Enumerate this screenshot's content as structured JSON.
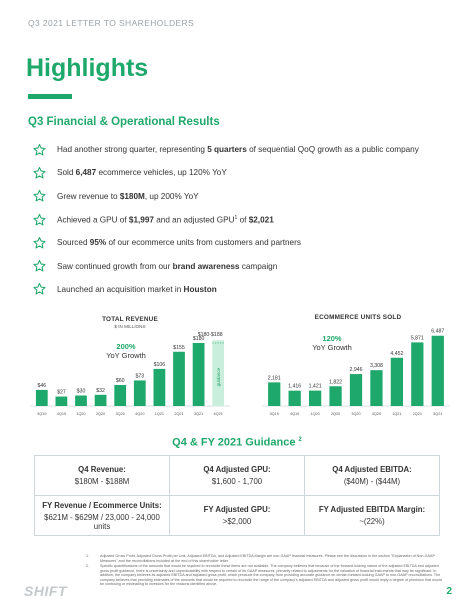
{
  "header": {
    "text": "Q3 2021 LETTER TO SHAREHOLDERS"
  },
  "title": "Highlights",
  "section_title": "Q3 Financial & Operational Results",
  "bullets": [
    {
      "parts": [
        {
          "t": "Had another strong quarter, representing ",
          "b": false
        },
        {
          "t": "5 quarters",
          "b": true
        },
        {
          "t": " of sequential QoQ growth as a public company",
          "b": false
        }
      ]
    },
    {
      "parts": [
        {
          "t": "Sold ",
          "b": false
        },
        {
          "t": "6,487",
          "b": true
        },
        {
          "t": " ecommerce vehicles, up 120% YoY",
          "b": false
        }
      ]
    },
    {
      "parts": [
        {
          "t": "Grew revenue to ",
          "b": false
        },
        {
          "t": "$180M",
          "b": true
        },
        {
          "t": ", up 200% YoY",
          "b": false
        }
      ]
    },
    {
      "parts": [
        {
          "t": "Achieved a GPU of ",
          "b": false
        },
        {
          "t": "$1,997",
          "b": true
        },
        {
          "t": " and an adjusted GPU",
          "b": false
        },
        {
          "t": "1",
          "b": false,
          "sup": true
        },
        {
          "t": " of ",
          "b": false
        },
        {
          "t": "$2,021",
          "b": true
        }
      ]
    },
    {
      "parts": [
        {
          "t": "Sourced ",
          "b": false
        },
        {
          "t": "95%",
          "b": true
        },
        {
          "t": " of our ecommerce units from customers and partners",
          "b": false
        }
      ]
    },
    {
      "parts": [
        {
          "t": "Saw continued growth from our ",
          "b": false
        },
        {
          "t": "brand awareness",
          "b": true
        },
        {
          "t": " campaign",
          "b": false
        }
      ]
    },
    {
      "parts": [
        {
          "t": "Launched an acquisition market in ",
          "b": false
        },
        {
          "t": "Houston",
          "b": true
        }
      ]
    }
  ],
  "chart_data": [
    {
      "type": "bar",
      "title": "TOTAL REVENUE",
      "subtitle": "$ IN MILLIONS",
      "categories": [
        "3Q19",
        "4Q19",
        "1Q20",
        "2Q20",
        "3Q20",
        "4Q20",
        "1Q21",
        "2Q21",
        "3Q21",
        "4Q21"
      ],
      "values": [
        46,
        27,
        30,
        32,
        60,
        73,
        106,
        155,
        180,
        null
      ],
      "data_labels": [
        "$46",
        "$27",
        "$30",
        "$32",
        "$60",
        "$73",
        "$106",
        "$155",
        "$180",
        ""
      ],
      "guidance_range": [
        180,
        188
      ],
      "guidance_label": "$180-$188",
      "guidance_text": "guidance",
      "growth_pct": "200%",
      "growth_label": "YoY Growth",
      "ylim": [
        0,
        200
      ],
      "colors": {
        "bar": "#1fa86b",
        "guidance_fill": "#c9eedb",
        "axis": "#cfd6d9"
      }
    },
    {
      "type": "bar",
      "title": "ECOMMERCE UNITS SOLD",
      "categories": [
        "3Q19",
        "4Q19",
        "1Q20",
        "2Q20",
        "3Q20",
        "4Q20",
        "1Q21",
        "2Q21",
        "3Q21"
      ],
      "values": [
        2181,
        1416,
        1421,
        1822,
        2946,
        3308,
        4452,
        5871,
        6487
      ],
      "data_labels": [
        "2,181",
        "1,416",
        "1,421",
        "1,822",
        "2,946",
        "3,308",
        "4,452",
        "5,871",
        "6,487"
      ],
      "growth_pct": "120%",
      "growth_label": "YoY Growth",
      "ylim": [
        0,
        7200
      ],
      "colors": {
        "bar": "#1fa86b",
        "axis": "#cfd6d9"
      }
    }
  ],
  "guidance": {
    "title": "Q4 & FY 2021 Guidance",
    "title_sup": "2",
    "rows": [
      [
        {
          "label": "Q4 Revenue:",
          "value": "$180M - $188M"
        },
        {
          "label": "Q4 Adjusted GPU:",
          "value": "$1,600 - 1,700"
        },
        {
          "label": "Q4 Adjusted EBITDA:",
          "value": "($40M) - ($44M)"
        }
      ],
      [
        {
          "label": "FY Revenue / Ecommerce Units:",
          "value": "$621M - $629M / 23,000 - 24,000 units"
        },
        {
          "label": "FY Adjusted GPU:",
          "value": ">$2,000"
        },
        {
          "label": "FY Adjusted EBITDA Margin:",
          "value": "~(22%)"
        }
      ]
    ]
  },
  "footnotes": [
    {
      "num": "1.",
      "text": "Adjusted Gross Profit, Adjusted Gross Profit per Unit, Adjusted EBITDA, and Adjusted EBITDA Margin are non-GAAP financial measures. Please see the discussion in the section \"Explanation of Non-GAAP Measures\" and the reconciliations included at the end of this shareholder letter."
    },
    {
      "num": "2.",
      "text": "Specific quantifications of the amounts that would be required to reconcile these items are not available. The company believes that because of the forward-looking nature of the adjusted EBITDA and adjusted gross profit guidance, there is uncertainty and unpredictability with respect to certain of its GAAP measures, primarily related to adjustments for the valuation of financial instruments that may be significant. In addition, the company believes its adjusted EBITDA and adjusted gross profit, which preclude the company from providing accurate guidance on certain forward-looking GAAP to non-GAAP reconciliations. The company believes that providing estimates of the amounts that would be required to reconcile the range of the company's adjusted EBITDA and adjusted gross profit would imply a degree of precision that would be confusing or misleading to investors for the reasons identified above."
    }
  ],
  "logo": "SHIFT",
  "page_number": "2",
  "colors": {
    "accent": "#1fa86b",
    "text": "#333333",
    "muted": "#9aa3a8"
  }
}
